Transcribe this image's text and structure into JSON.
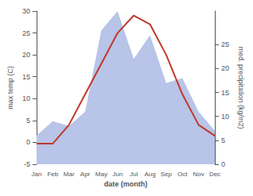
{
  "chart_data": {
    "type": "line",
    "xlabel": "date (month)",
    "ylabel": "max temp (C)",
    "y2label": "med. precipitation (kg/m2)",
    "categories": [
      "Jan",
      "Feb",
      "Mar",
      "Apr",
      "May",
      "Jun",
      "Jul",
      "Aug",
      "Sep",
      "Oct",
      "Nov",
      "Dec"
    ],
    "series": [
      {
        "type": "area",
        "axis": "y2",
        "color": "#b8c4e8",
        "values": [
          6,
          9,
          8,
          11,
          28,
          32,
          22,
          27,
          17,
          18,
          11,
          7
        ]
      },
      {
        "type": "line",
        "color": "#c0392b",
        "values": [
          -0.3,
          -0.3,
          4,
          11,
          18,
          25,
          29,
          27,
          20,
          11,
          4,
          1.5
        ]
      }
    ],
    "ylim": [
      -5,
      30
    ],
    "yticks": [
      -5,
      0,
      5,
      10,
      15,
      20,
      25,
      30
    ],
    "y2lim": [
      0,
      32
    ],
    "y2ticks": [
      0,
      5,
      10,
      15,
      20,
      25
    ],
    "grid": false
  }
}
